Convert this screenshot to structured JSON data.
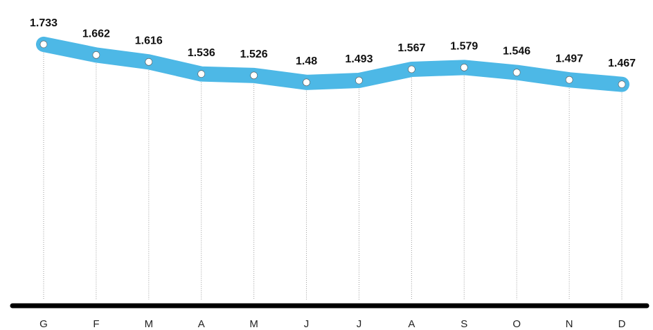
{
  "chart_data": {
    "type": "line",
    "categories": [
      "G",
      "F",
      "M",
      "A",
      "M",
      "J",
      "J",
      "A",
      "S",
      "O",
      "N",
      "D"
    ],
    "values": [
      1.733,
      1.662,
      1.616,
      1.536,
      1.526,
      1.48,
      1.493,
      1.567,
      1.579,
      1.546,
      1.497,
      1.467
    ],
    "color": "#4db8e6",
    "ylim": [
      0,
      2
    ]
  }
}
